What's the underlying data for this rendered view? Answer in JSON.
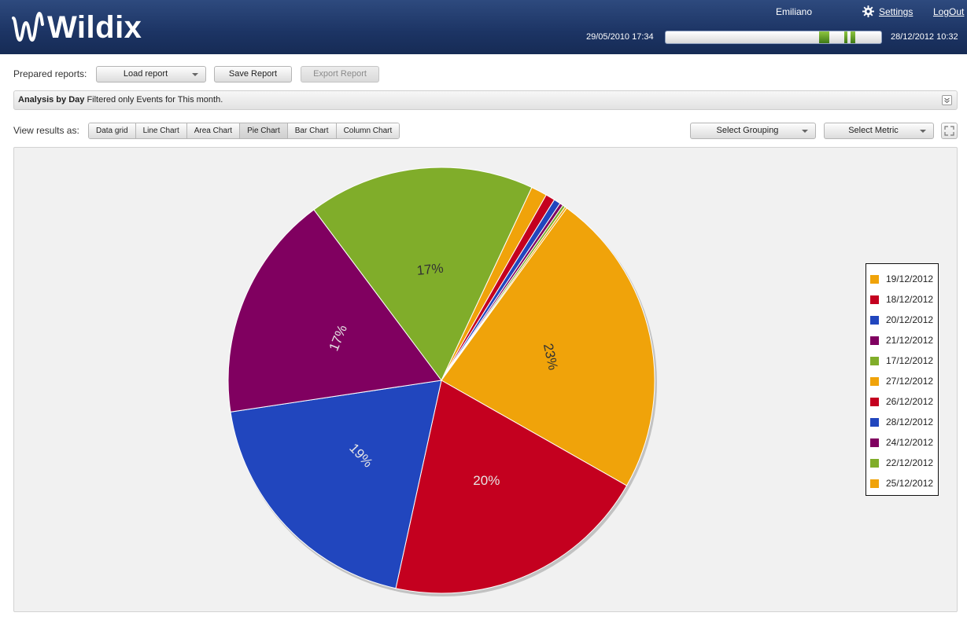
{
  "header": {
    "logo_text": "Wildix",
    "user": "Emiliano",
    "settings_label": "Settings",
    "logout_label": "LogOut",
    "range_start": "29/05/2010 17:34",
    "range_end": "28/12/2012 10:32"
  },
  "toolbar": {
    "prepared_reports_label": "Prepared reports:",
    "load_report_label": "Load report",
    "save_report_label": "Save Report",
    "export_report_label": "Export Report"
  },
  "filter": {
    "title": "Analysis by Day",
    "description": "Filtered only Events for This month."
  },
  "view": {
    "label": "View results as:",
    "tabs": [
      "Data grid",
      "Line Chart",
      "Area Chart",
      "Pie Chart",
      "Bar Chart",
      "Column Chart"
    ],
    "active_tab": "Pie Chart",
    "grouping_label": "Select Grouping",
    "metric_label": "Select Metric"
  },
  "chart_data": {
    "type": "pie",
    "categories": [
      "19/12/2012",
      "18/12/2012",
      "20/12/2012",
      "21/12/2012",
      "17/12/2012",
      "27/12/2012",
      "26/12/2012",
      "28/12/2012",
      "24/12/2012",
      "22/12/2012",
      "25/12/2012"
    ],
    "values": [
      23,
      20,
      19,
      17,
      17,
      1.2,
      0.7,
      0.5,
      0.25,
      0.2,
      0.15
    ],
    "labels": [
      "23%",
      "20%",
      "19%",
      "17%",
      "17%",
      "",
      "",
      "",
      "",
      "",
      ""
    ],
    "colors": [
      "#f0a30a",
      "#c4001f",
      "#2146be",
      "#800060",
      "#80ad2a",
      "#f0a30a",
      "#c4001f",
      "#2146be",
      "#800060",
      "#80ad2a",
      "#f0a30a"
    ],
    "legend_position": "right"
  }
}
